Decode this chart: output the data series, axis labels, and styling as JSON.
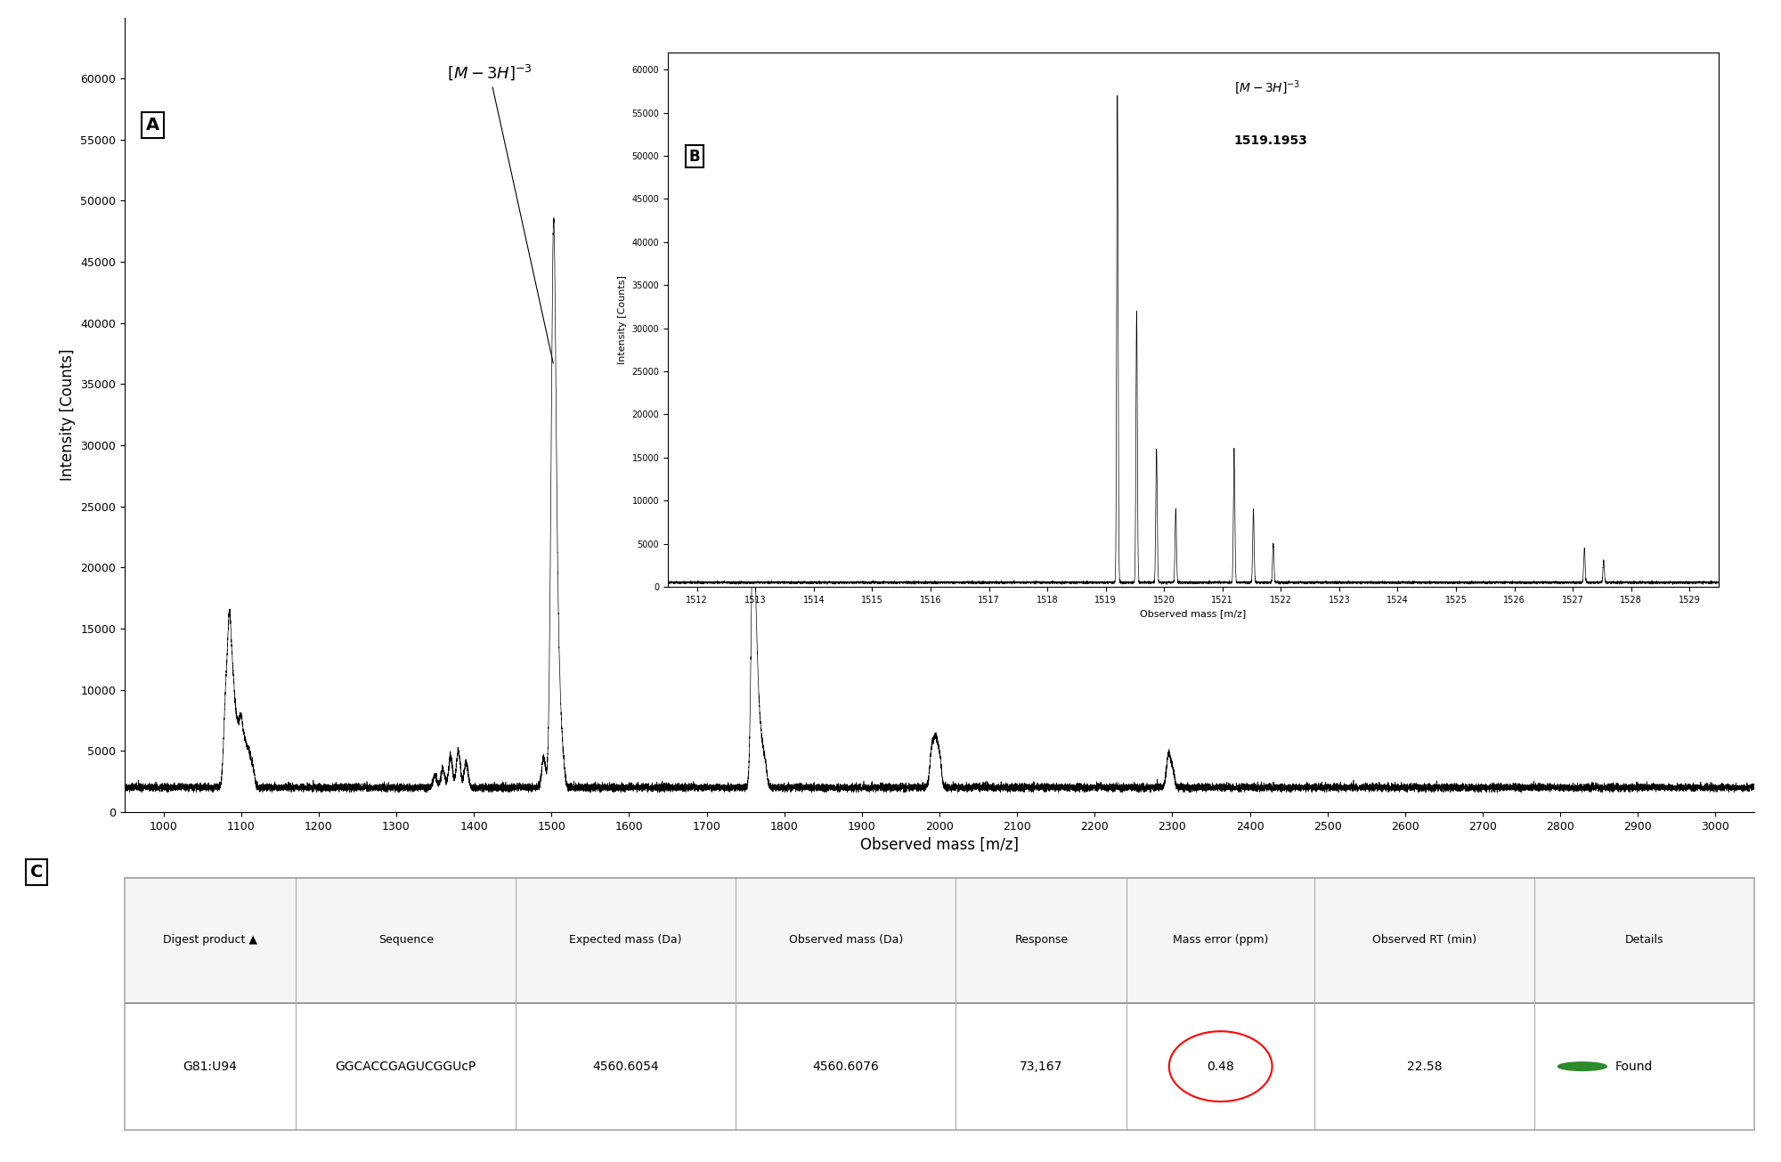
{
  "main_spectrum": {
    "xlim": [
      950,
      3050
    ],
    "ylim": [
      0,
      65000
    ],
    "yticks": [
      0,
      5000,
      10000,
      15000,
      20000,
      25000,
      30000,
      35000,
      40000,
      45000,
      50000,
      55000,
      60000
    ],
    "xticks": [
      1000,
      1100,
      1200,
      1300,
      1400,
      1500,
      1600,
      1700,
      1800,
      1900,
      2000,
      2100,
      2200,
      2300,
      2400,
      2500,
      2600,
      2700,
      2800,
      2900,
      3000
    ],
    "xlabel": "Observed mass [m/z]",
    "ylabel": "Intensity [Counts]",
    "label_A": "A",
    "peaks_main": [
      [
        1080,
        8500
      ],
      [
        1085,
        14500
      ],
      [
        1090,
        9000
      ],
      [
        1095,
        6000
      ],
      [
        1100,
        7000
      ],
      [
        1105,
        5000
      ],
      [
        1110,
        4500
      ],
      [
        1115,
        3500
      ],
      [
        1350,
        3000
      ],
      [
        1360,
        3500
      ],
      [
        1370,
        4500
      ],
      [
        1380,
        5000
      ],
      [
        1390,
        4000
      ],
      [
        1490,
        4500
      ],
      [
        1500,
        15800
      ],
      [
        1503,
        36500
      ],
      [
        1506,
        12000
      ],
      [
        1509,
        8000
      ],
      [
        1512,
        4500
      ],
      [
        1515,
        3500
      ],
      [
        1760,
        25000
      ],
      [
        1765,
        10000
      ],
      [
        1770,
        5500
      ],
      [
        1775,
        4000
      ],
      [
        1990,
        5000
      ],
      [
        1995,
        5500
      ],
      [
        2000,
        4500
      ],
      [
        2295,
        4500
      ],
      [
        2300,
        3500
      ]
    ]
  },
  "inset_spectrum": {
    "xlim": [
      1511.5,
      1529.5
    ],
    "ylim": [
      0,
      62000
    ],
    "yticks": [
      0,
      5000,
      10000,
      15000,
      20000,
      25000,
      30000,
      35000,
      40000,
      45000,
      50000,
      55000,
      60000
    ],
    "xticks": [
      1512,
      1513,
      1514,
      1515,
      1516,
      1517,
      1518,
      1519,
      1520,
      1521,
      1522,
      1523,
      1524,
      1525,
      1526,
      1527,
      1528,
      1529
    ],
    "xlabel": "Observed mass [m/z]",
    "ylabel": "Intensity [Counts]",
    "label_B": "B",
    "annotation_m3h_mz": "1519.1953",
    "peaks_inset": [
      [
        1519.2,
        57000
      ],
      [
        1519.53,
        32000
      ],
      [
        1519.87,
        16000
      ],
      [
        1520.2,
        9000
      ],
      [
        1521.2,
        16000
      ],
      [
        1521.53,
        9000
      ],
      [
        1521.87,
        5000
      ],
      [
        1527.2,
        4500
      ],
      [
        1527.53,
        3000
      ]
    ]
  },
  "table": {
    "columns": [
      "Digest product ▲",
      "Sequence",
      "Expected mass (Da)",
      "Observed mass (Da)",
      "Response",
      "Mass error (ppm)",
      "Observed RT (min)",
      "Details"
    ],
    "col_widths": [
      0.105,
      0.135,
      0.135,
      0.135,
      0.105,
      0.115,
      0.135,
      0.135
    ],
    "row": [
      "G81:U94",
      "GGCACCGAGUCGGUcP",
      "4560.6054",
      "4560.6076",
      "73,167",
      "0.48",
      "22.58",
      "Found"
    ],
    "found_dot_color": "#2d8a2d"
  },
  "colors": {
    "spectrum_line": "#000000",
    "background": "#ffffff",
    "table_border": "#aaaaaa",
    "header_separator": "#555555"
  }
}
